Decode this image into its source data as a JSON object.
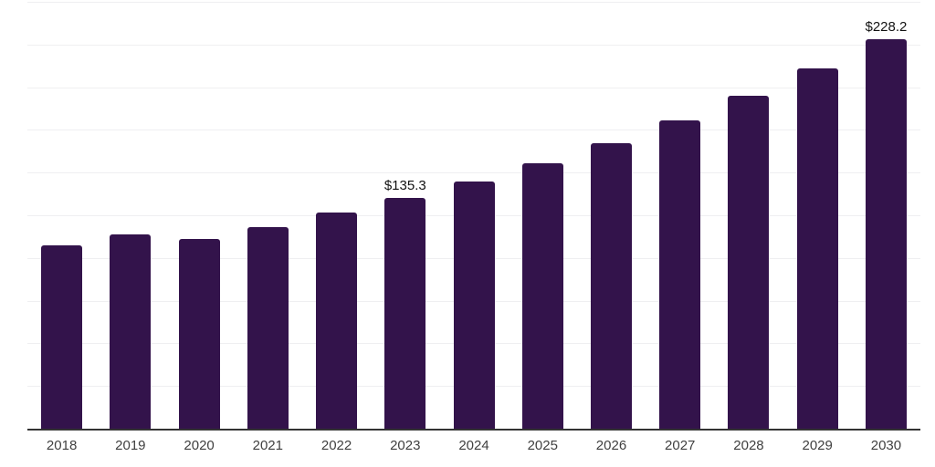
{
  "chart_data": {
    "type": "bar",
    "title": "",
    "xlabel": "",
    "ylabel": "",
    "categories": [
      "2018",
      "2019",
      "2020",
      "2021",
      "2022",
      "2023",
      "2024",
      "2025",
      "2026",
      "2027",
      "2028",
      "2029",
      "2030"
    ],
    "values": [
      107.3,
      114.0,
      111.0,
      118.2,
      126.4,
      135.3,
      144.9,
      155.7,
      167.3,
      180.7,
      195.0,
      210.9,
      228.2
    ],
    "value_labels": {
      "2023": "$135.3",
      "2030": "$228.2"
    },
    "ylim": [
      0,
      250
    ],
    "grid": true,
    "gridline_interval": 25,
    "legend": "none",
    "colors": {
      "bar": "#33134b",
      "axis": "#333333",
      "gridline": "#efeff1",
      "value_label": "#121212",
      "tick_label": "#404040",
      "background": "#ffffff"
    }
  }
}
